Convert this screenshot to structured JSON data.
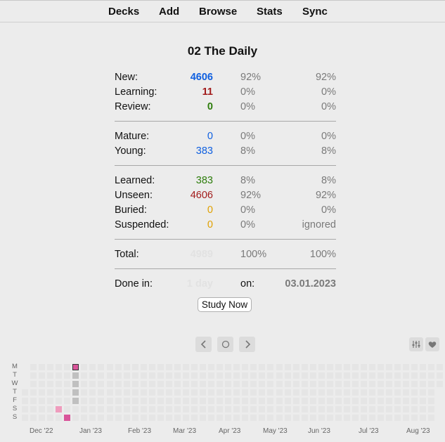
{
  "nav": {
    "decks": "Decks",
    "add": "Add",
    "browse": "Browse",
    "stats": "Stats",
    "sync": "Sync"
  },
  "deck_title": "02 The Daily",
  "stats": {
    "new": {
      "label": "New:",
      "value": "4606",
      "pct1": "92%",
      "pct2": "92%"
    },
    "learning": {
      "label": "Learning:",
      "value": "11",
      "pct1": "0%",
      "pct2": "0%"
    },
    "review": {
      "label": "Review:",
      "value": "0",
      "pct1": "0%",
      "pct2": "0%"
    },
    "mature": {
      "label": "Mature:",
      "value": "0",
      "pct1": "0%",
      "pct2": "0%"
    },
    "young": {
      "label": "Young:",
      "value": "383",
      "pct1": "8%",
      "pct2": "8%"
    },
    "learned": {
      "label": "Learned:",
      "value": "383",
      "pct1": "8%",
      "pct2": "8%"
    },
    "unseen": {
      "label": "Unseen:",
      "value": "4606",
      "pct1": "92%",
      "pct2": "92%"
    },
    "buried": {
      "label": "Buried:",
      "value": "0",
      "pct1": "0%",
      "pct2": "0%"
    },
    "suspended": {
      "label": "Suspended:",
      "value": "0",
      "pct1": "0%",
      "pct2": "ignored"
    },
    "total": {
      "label": "Total:",
      "value": "4989",
      "pct1": "100%",
      "pct2": "100%"
    }
  },
  "done": {
    "label": "Done in:",
    "value": "1 day",
    "on_label": "on:",
    "date": "03.01.2023"
  },
  "study_button": "Study Now",
  "colors": {
    "new": "#1060e0",
    "learning": "#a21c1c",
    "review": "#2e7d0c",
    "buried": "#e0a000",
    "heat_strong": "#d9559a",
    "heat_light": "#ef9cbd",
    "heat_today": "#c0c0c0",
    "heat_empty": "#e5e5e5"
  },
  "heatmap": {
    "weekdays": [
      "M",
      "T",
      "W",
      "T",
      "F",
      "S",
      "S"
    ],
    "months": [
      "Dec '22",
      "Jan '23",
      "Feb '23",
      "Mar '23",
      "Apr '23",
      "May '23",
      "Jun '23",
      "Jul '23",
      "Aug '23"
    ]
  }
}
